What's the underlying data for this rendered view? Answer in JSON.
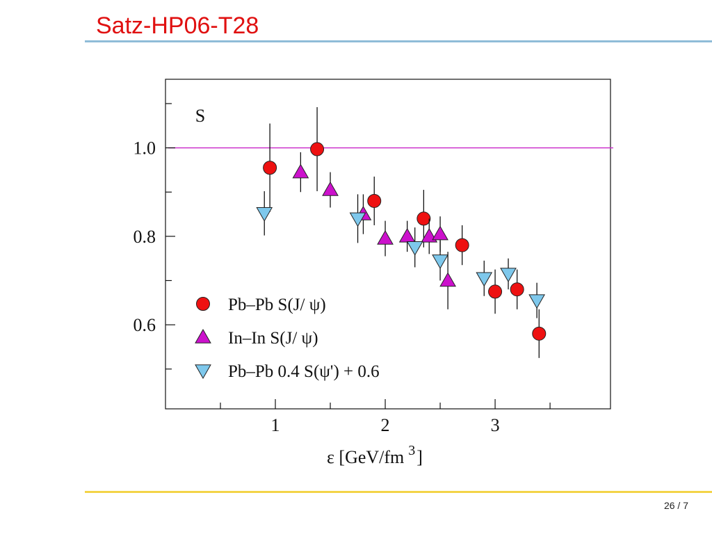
{
  "slide": {
    "title": "Satz-HP06-T28",
    "page_number": "26 / 7"
  },
  "colors": {
    "title": "#e01010",
    "top_rule": "#8fbcd8",
    "bottom_rule": "#f3d448",
    "reference_line": "#cc33cc"
  },
  "chart_data": {
    "type": "scatter",
    "title": "",
    "ylabel": "S",
    "xlabel": "ε  [GeV/fm",
    "xlabel_superscript": "3",
    "xlabel_suffix": "]",
    "xlim": [
      0,
      4.05
    ],
    "ylim": [
      0.41,
      1.155
    ],
    "x_ticks": [
      {
        "value": 1,
        "label": "1"
      },
      {
        "value": 2,
        "label": "2"
      },
      {
        "value": 3,
        "label": "3"
      }
    ],
    "x_minor_ticks": [
      0.5,
      1.5,
      2.5,
      3.5
    ],
    "y_ticks": [
      {
        "value": 0.6,
        "label": "0.6"
      },
      {
        "value": 0.8,
        "label": "0.8"
      },
      {
        "value": 1.0,
        "label": "1.0"
      }
    ],
    "y_minor_ticks": [
      0.5,
      0.7,
      0.9,
      1.1
    ],
    "reference_line": {
      "y": 1.0
    },
    "grid": false,
    "legend_position": "bottom-left",
    "series": [
      {
        "name": "Pb–Pb  S(J/ ψ)",
        "marker": "circle",
        "color": "#ee1111",
        "points": [
          {
            "x": 0.95,
            "y": 0.955,
            "err": 0.1
          },
          {
            "x": 1.38,
            "y": 0.997,
            "err": 0.095
          },
          {
            "x": 1.9,
            "y": 0.88,
            "err": 0.055
          },
          {
            "x": 2.35,
            "y": 0.84,
            "err": 0.065
          },
          {
            "x": 2.7,
            "y": 0.78,
            "err": 0.045
          },
          {
            "x": 3.0,
            "y": 0.675,
            "err": 0.05
          },
          {
            "x": 3.2,
            "y": 0.68,
            "err": 0.045
          },
          {
            "x": 3.4,
            "y": 0.58,
            "err": 0.055
          }
        ]
      },
      {
        "name": "In–In   S(J/ ψ)",
        "marker": "triangle-up",
        "color": "#cc11cc",
        "points": [
          {
            "x": 1.23,
            "y": 0.945,
            "err": 0.045
          },
          {
            "x": 1.5,
            "y": 0.905,
            "err": 0.04
          },
          {
            "x": 1.8,
            "y": 0.85,
            "err": 0.045
          },
          {
            "x": 2.0,
            "y": 0.795,
            "err": 0.04
          },
          {
            "x": 2.2,
            "y": 0.8,
            "err": 0.035
          },
          {
            "x": 2.4,
            "y": 0.8,
            "err": 0.04
          },
          {
            "x": 2.5,
            "y": 0.805,
            "err": 0.04
          },
          {
            "x": 2.57,
            "y": 0.7,
            "err": 0.065
          }
        ]
      },
      {
        "name": "Pb–Pb  0.4 S(ψ') + 0.6",
        "marker": "triangle-down",
        "color": "#7ec8ec",
        "points": [
          {
            "x": 0.9,
            "y": 0.852,
            "err": 0.05
          },
          {
            "x": 1.75,
            "y": 0.84,
            "err": 0.055
          },
          {
            "x": 2.27,
            "y": 0.775,
            "err": 0.045
          },
          {
            "x": 2.5,
            "y": 0.745,
            "err": 0.045
          },
          {
            "x": 2.9,
            "y": 0.705,
            "err": 0.04
          },
          {
            "x": 3.12,
            "y": 0.715,
            "err": 0.035
          },
          {
            "x": 3.38,
            "y": 0.655,
            "err": 0.04
          }
        ]
      }
    ]
  }
}
